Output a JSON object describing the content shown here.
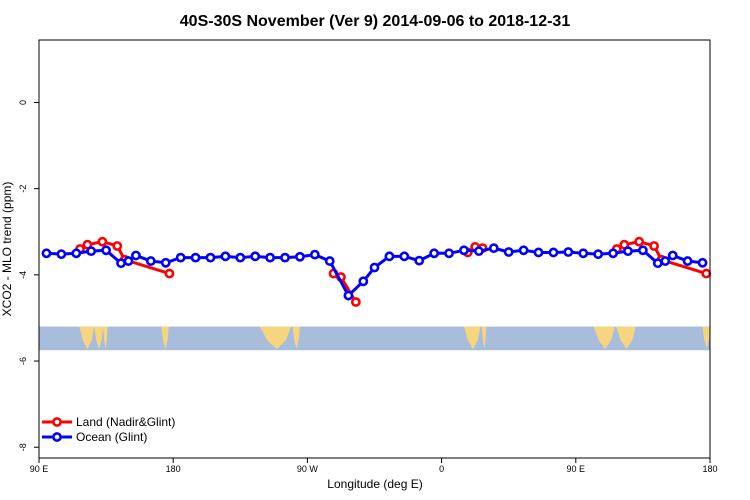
{
  "chart_data": {
    "type": "line",
    "title": "40S-30S November (Ver 9)   2014-09-06 to 2018-12-31",
    "xlabel": "Longitude (deg E)",
    "ylabel": "XCO2 - MLO trend (ppm)",
    "xlim": [
      90,
      540
    ],
    "ylim": [
      -8.25,
      1.45
    ],
    "x_ticks": [
      {
        "value": 90,
        "label": "90 E"
      },
      {
        "value": 180,
        "label": "180"
      },
      {
        "value": 270,
        "label": "90 W"
      },
      {
        "value": 360,
        "label": "0"
      },
      {
        "value": 450,
        "label": "90 E"
      },
      {
        "value": 540,
        "label": "180"
      }
    ],
    "y_ticks": [
      {
        "value": 0,
        "label": "0"
      },
      {
        "value": -2,
        "label": "-2"
      },
      {
        "value": -4,
        "label": "-4"
      },
      {
        "value": -6,
        "label": "-6"
      },
      {
        "value": -8,
        "label": "-8"
      }
    ],
    "map_band": {
      "lat_range": "40S-30S",
      "y_range": [
        -5.75,
        -5.2
      ],
      "ocean_color": "#a8bcdc",
      "land_color": "#f6d57e",
      "land_spans": [
        [
          117,
          127
        ],
        [
          127,
          133
        ],
        [
          133,
          136
        ],
        [
          172,
          177
        ],
        [
          238,
          259
        ],
        [
          260,
          265
        ],
        [
          375,
          386
        ],
        [
          387,
          390
        ],
        [
          462,
          476
        ],
        [
          477,
          490
        ],
        [
          535,
          540
        ]
      ]
    },
    "series": [
      {
        "name": "Land (Nadir&Glint)",
        "color": "#ff0000",
        "segments": [
          {
            "x": [
              117.5,
              122.5,
              132.5,
              142.5,
              147.5,
              177.5
            ],
            "y": [
              -3.4,
              -3.3,
              -3.23,
              -3.33,
              -3.65,
              -3.97
            ]
          },
          {
            "x": [
              287.5,
              292.5,
              302.5
            ],
            "y": [
              -3.97,
              -4.05,
              -4.63
            ]
          },
          {
            "x": [
              377.5,
              382.5,
              387.5
            ],
            "y": [
              -3.48,
              -3.35,
              -3.38
            ]
          },
          {
            "x": [
              477.5,
              482.5,
              492.5,
              502.5,
              507.5,
              537.5
            ],
            "y": [
              -3.4,
              -3.3,
              -3.23,
              -3.33,
              -3.65,
              -3.97
            ]
          }
        ]
      },
      {
        "name": "Ocean (Glint)",
        "color": "#0000ff",
        "segments": [
          {
            "x": [
              95,
              105,
              115,
              125,
              135,
              145,
              150,
              155,
              165,
              175,
              185,
              195,
              205,
              215,
              225,
              235,
              245,
              255,
              265,
              275,
              285,
              297.5,
              307.5,
              315,
              325,
              335,
              345,
              355,
              365,
              375,
              385,
              395,
              405,
              415,
              425,
              435,
              445,
              455,
              465,
              475,
              485,
              495,
              505,
              510,
              515,
              525,
              535
            ],
            "y": [
              -3.5,
              -3.52,
              -3.5,
              -3.45,
              -3.43,
              -3.73,
              -3.68,
              -3.55,
              -3.68,
              -3.72,
              -3.6,
              -3.6,
              -3.6,
              -3.57,
              -3.6,
              -3.57,
              -3.6,
              -3.6,
              -3.58,
              -3.53,
              -3.68,
              -4.48,
              -4.15,
              -3.83,
              -3.57,
              -3.57,
              -3.67,
              -3.5,
              -3.5,
              -3.43,
              -3.45,
              -3.38,
              -3.47,
              -3.43,
              -3.48,
              -3.48,
              -3.47,
              -3.5,
              -3.52,
              -3.5,
              -3.45,
              -3.43,
              -3.73,
              -3.68,
              -3.55,
              -3.68,
              -3.72
            ]
          }
        ]
      }
    ],
    "legend": {
      "position": "bottom-left",
      "entries": [
        {
          "label": "Land (Nadir&Glint)",
          "color": "#ff0000"
        },
        {
          "label": "Ocean (Glint)",
          "color": "#0000ff"
        }
      ]
    }
  }
}
